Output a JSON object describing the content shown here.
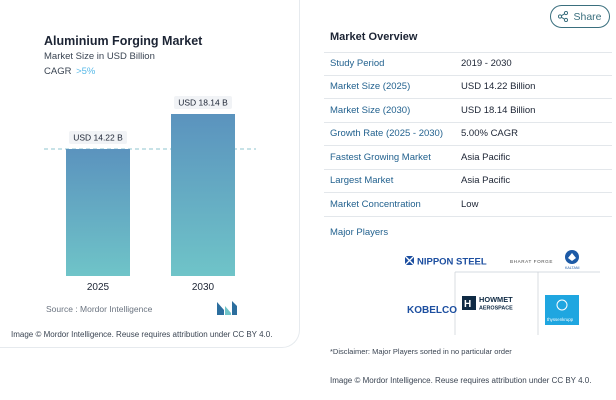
{
  "chart": {
    "title": "Aluminium Forging Market",
    "subtitle": "Market Size in USD Billion",
    "cagr_label": "CAGR",
    "cagr_value": ">5%",
    "source": "Source :  Mordor Intelligence",
    "attribution": "Image © Mordor Intelligence. Reuse requires attribution under CC BY 4.0."
  },
  "chart_data": {
    "type": "bar",
    "categories": [
      "2025",
      "2030"
    ],
    "values": [
      14.22,
      18.14
    ],
    "data_labels": [
      "USD 14.22 B",
      "USD 18.14 B"
    ],
    "title": "Aluminium Forging Market",
    "ylabel": "Market Size in USD Billion",
    "ylim": [
      0,
      18.14
    ],
    "grid": false,
    "bar_color_top": "#5b93be",
    "bar_color_bottom": "#6fc4c8",
    "reference_line_value": 14.22,
    "reference_line_color": "#8fc6cf"
  },
  "share": {
    "label": "Share",
    "icon": "share-icon"
  },
  "overview": {
    "title": "Market Overview",
    "rows": [
      {
        "key": "Study Period",
        "value": "2019 - 2030"
      },
      {
        "key": "Market Size (2025)",
        "value": "USD 14.22 Billion"
      },
      {
        "key": "Market Size (2030)",
        "value": "USD 18.14 Billion"
      },
      {
        "key": "Growth Rate (2025 - 2030)",
        "value": "5.00% CAGR"
      },
      {
        "key": "Fastest Growing Market",
        "value": "Asia Pacific"
      },
      {
        "key": "Largest Market",
        "value": "Asia Pacific"
      },
      {
        "key": "Market Concentration",
        "value": "Low"
      }
    ],
    "players_title": "Major Players",
    "players": {
      "nippon": "NIPPON STEEL",
      "bharat": "BHARAT FORGE",
      "kaltani": "KALTANI",
      "kobelco": "KOBELCO",
      "howmet_line1": "HOWMET",
      "howmet_line2": "AEROSPACE",
      "thyssen": "thyssenkrupp"
    },
    "disclaimer": "*Disclaimer: Major Players sorted in no particular order",
    "attribution": "Image © Mordor Intelligence. Reuse requires attribution under CC BY 4.0."
  },
  "colors": {
    "accent_blue": "#23628f",
    "cagr_blue": "#57b9e8",
    "share_teal": "#3a6f7e"
  }
}
